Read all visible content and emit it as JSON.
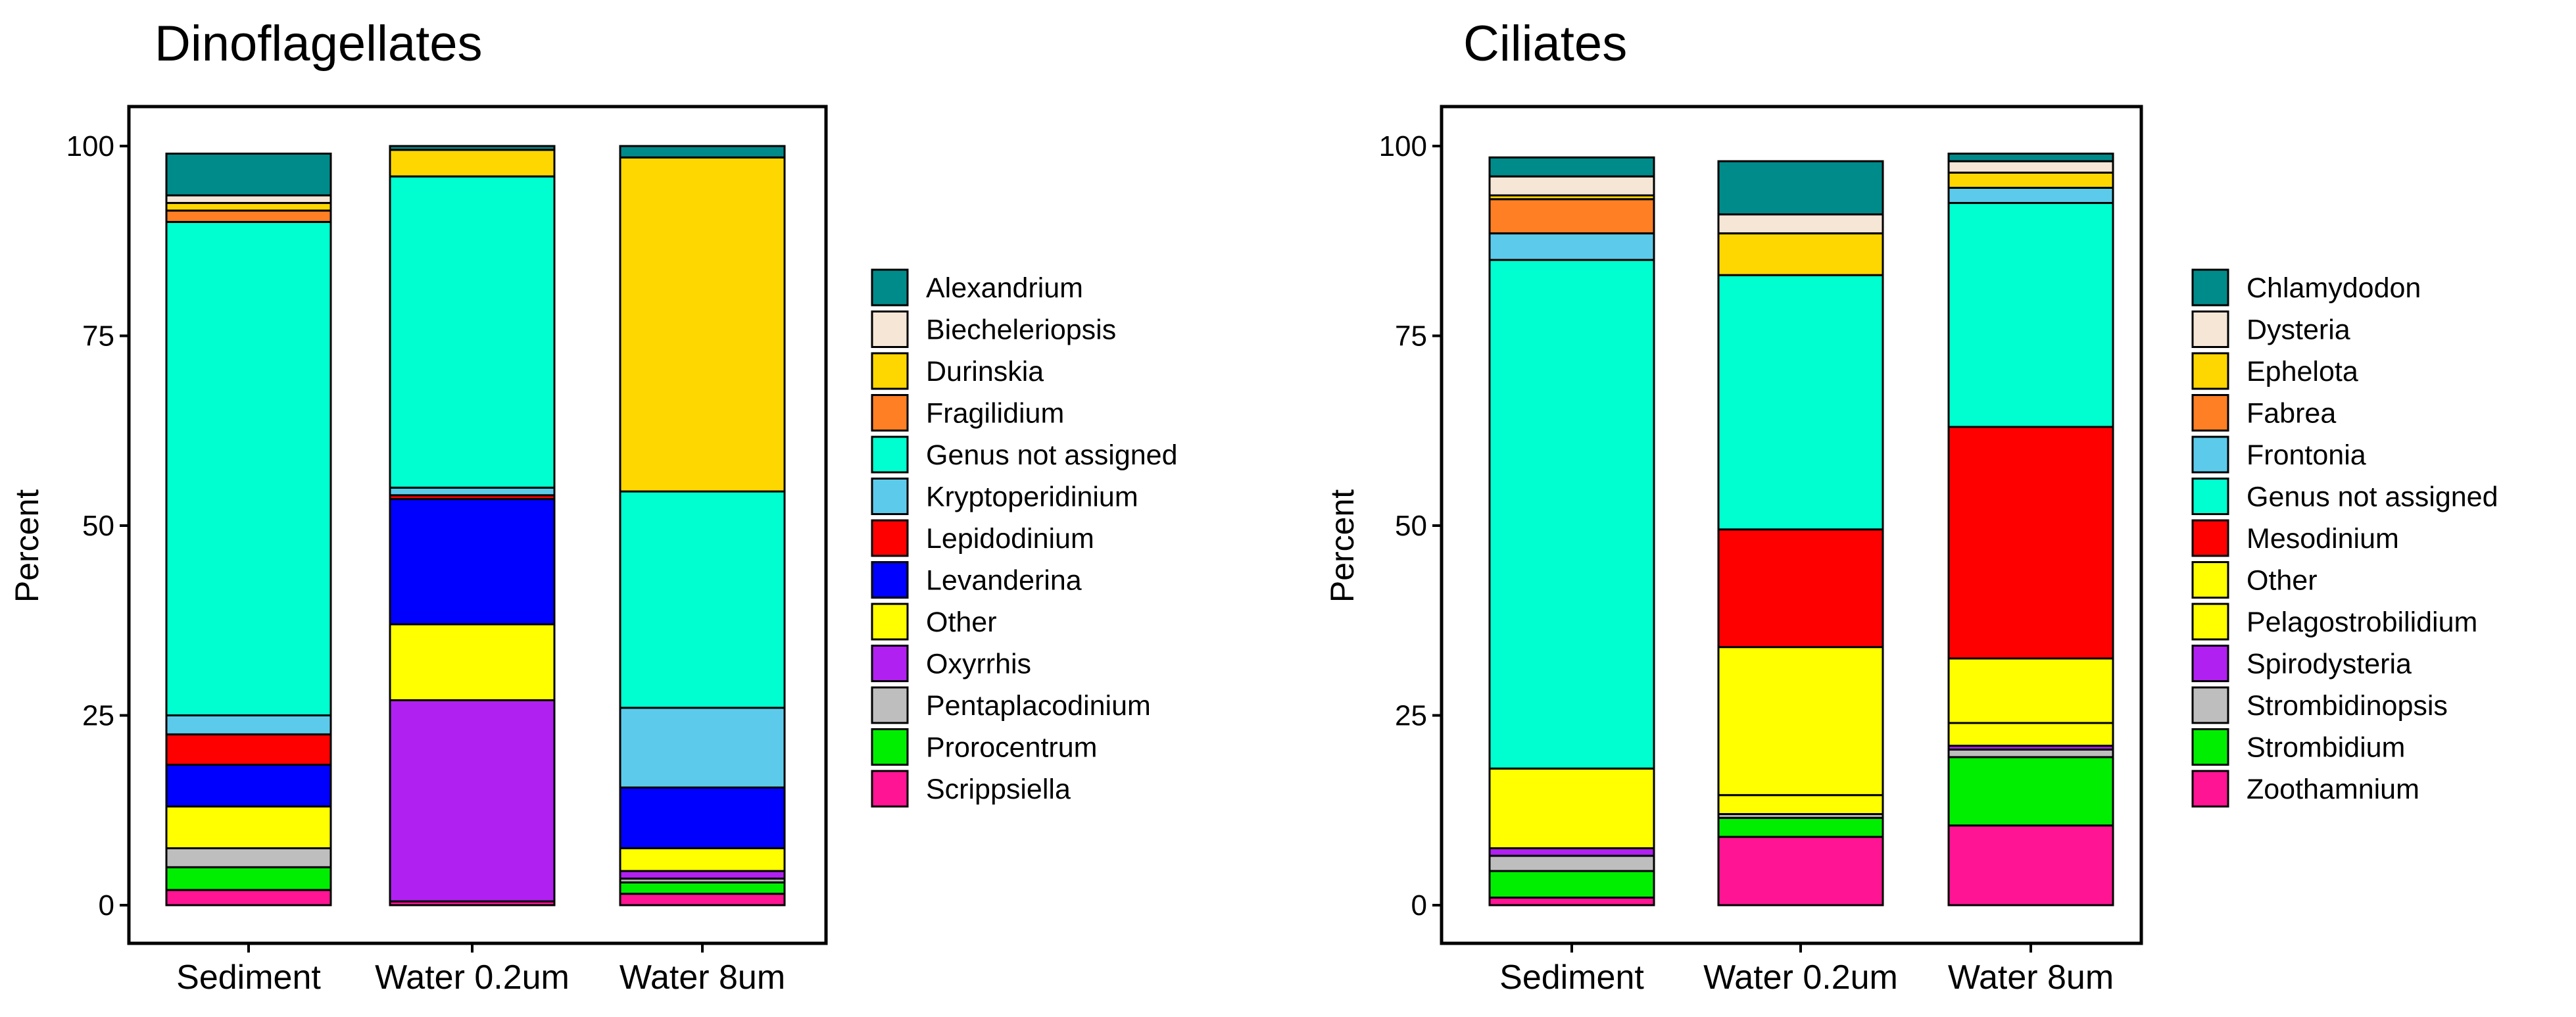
{
  "colors": {
    "Alexandrium": "#008B8B",
    "Biecheleriopsis": "#F5E6D6",
    "Durinskia": "#FFD700",
    "Fragilidium": "#FF7F24",
    "Genus not assigned": "#00FFD0",
    "Kryptoperidinium": "#5CCBEB",
    "Lepidodinium": "#FF0000",
    "Levanderina": "#0000FF",
    "Other": "#FFFF00",
    "Oxyrrhis": "#B020F0",
    "Pentaplacodinium": "#BEBEBE",
    "Prorocentrum": "#00EE00",
    "Scrippsiella": "#FF1493",
    "Chlamydodon": "#008B8B",
    "Dysteria": "#F5E6D6",
    "Ephelota": "#FFD700",
    "Fabrea": "#FF7F24",
    "Frontonia": "#5CCBEB",
    "Mesodinium": "#FF0000",
    "Pelagostrobilidium": "#FFFF00",
    "Spirodysteria": "#B020F0",
    "Strombidinopsis": "#BEBEBE",
    "Strombidium": "#00EE00",
    "Zoothamnium": "#FF1493"
  },
  "chart_data": [
    {
      "type": "bar",
      "stacked": true,
      "title": "Dinoflagellates",
      "xlabel": "",
      "ylabel": "Percent",
      "ylim": [
        0,
        100
      ],
      "yticks": [
        0,
        25,
        50,
        75,
        100
      ],
      "categories": [
        "Sediment",
        "Water 0.2um",
        "Water 8um"
      ],
      "legend_position": "right",
      "series": [
        {
          "name": "Alexandrium",
          "values": [
            5.5,
            0.5,
            1.5
          ]
        },
        {
          "name": "Biecheleriopsis",
          "values": [
            1.0,
            0.0,
            0.0
          ]
        },
        {
          "name": "Durinskia",
          "values": [
            1.0,
            3.5,
            44.0
          ]
        },
        {
          "name": "Fragilidium",
          "values": [
            1.5,
            0.0,
            0.0
          ]
        },
        {
          "name": "Genus not assigned",
          "values": [
            65.0,
            41.0,
            28.5
          ]
        },
        {
          "name": "Kryptoperidinium",
          "values": [
            2.5,
            1.0,
            10.5
          ]
        },
        {
          "name": "Lepidodinium",
          "values": [
            4.0,
            0.5,
            0.0
          ]
        },
        {
          "name": "Levanderina",
          "values": [
            5.5,
            16.5,
            8.0
          ]
        },
        {
          "name": "Other",
          "values": [
            5.5,
            10.0,
            3.0
          ]
        },
        {
          "name": "Oxyrrhis",
          "values": [
            0.0,
            26.5,
            1.0
          ]
        },
        {
          "name": "Pentaplacodinium",
          "values": [
            2.5,
            0.0,
            0.5
          ]
        },
        {
          "name": "Prorocentrum",
          "values": [
            3.0,
            0.0,
            1.5
          ]
        },
        {
          "name": "Scrippsiella",
          "values": [
            2.0,
            0.5,
            1.5
          ]
        }
      ]
    },
    {
      "type": "bar",
      "stacked": true,
      "title": "Ciliates",
      "xlabel": "",
      "ylabel": "Percent",
      "ylim": [
        0,
        100
      ],
      "yticks": [
        0,
        25,
        50,
        75,
        100
      ],
      "categories": [
        "Sediment",
        "Water 0.2um",
        "Water 8um"
      ],
      "legend_position": "right",
      "series": [
        {
          "name": "Chlamydodon",
          "values": [
            2.5,
            7.0,
            1.0
          ]
        },
        {
          "name": "Dysteria",
          "values": [
            2.5,
            2.5,
            1.5
          ]
        },
        {
          "name": "Ephelota",
          "values": [
            0.5,
            5.5,
            2.0
          ]
        },
        {
          "name": "Fabrea",
          "values": [
            4.5,
            0.0,
            0.0
          ]
        },
        {
          "name": "Frontonia",
          "values": [
            3.5,
            0.0,
            2.0
          ]
        },
        {
          "name": "Genus not assigned",
          "values": [
            67.0,
            33.5,
            29.5
          ]
        },
        {
          "name": "Mesodinium",
          "values": [
            0.0,
            15.5,
            30.5
          ]
        },
        {
          "name": "Other",
          "values": [
            10.5,
            19.5,
            8.5
          ]
        },
        {
          "name": "Pelagostrobilidium",
          "values": [
            0.0,
            2.5,
            3.0
          ]
        },
        {
          "name": "Spirodysteria",
          "values": [
            1.0,
            0.0,
            0.5
          ]
        },
        {
          "name": "Strombidinopsis",
          "values": [
            2.0,
            0.5,
            1.0
          ]
        },
        {
          "name": "Strombidium",
          "values": [
            3.5,
            2.5,
            9.0
          ]
        },
        {
          "name": "Zoothamnium",
          "values": [
            1.0,
            9.0,
            10.5
          ]
        }
      ]
    }
  ]
}
